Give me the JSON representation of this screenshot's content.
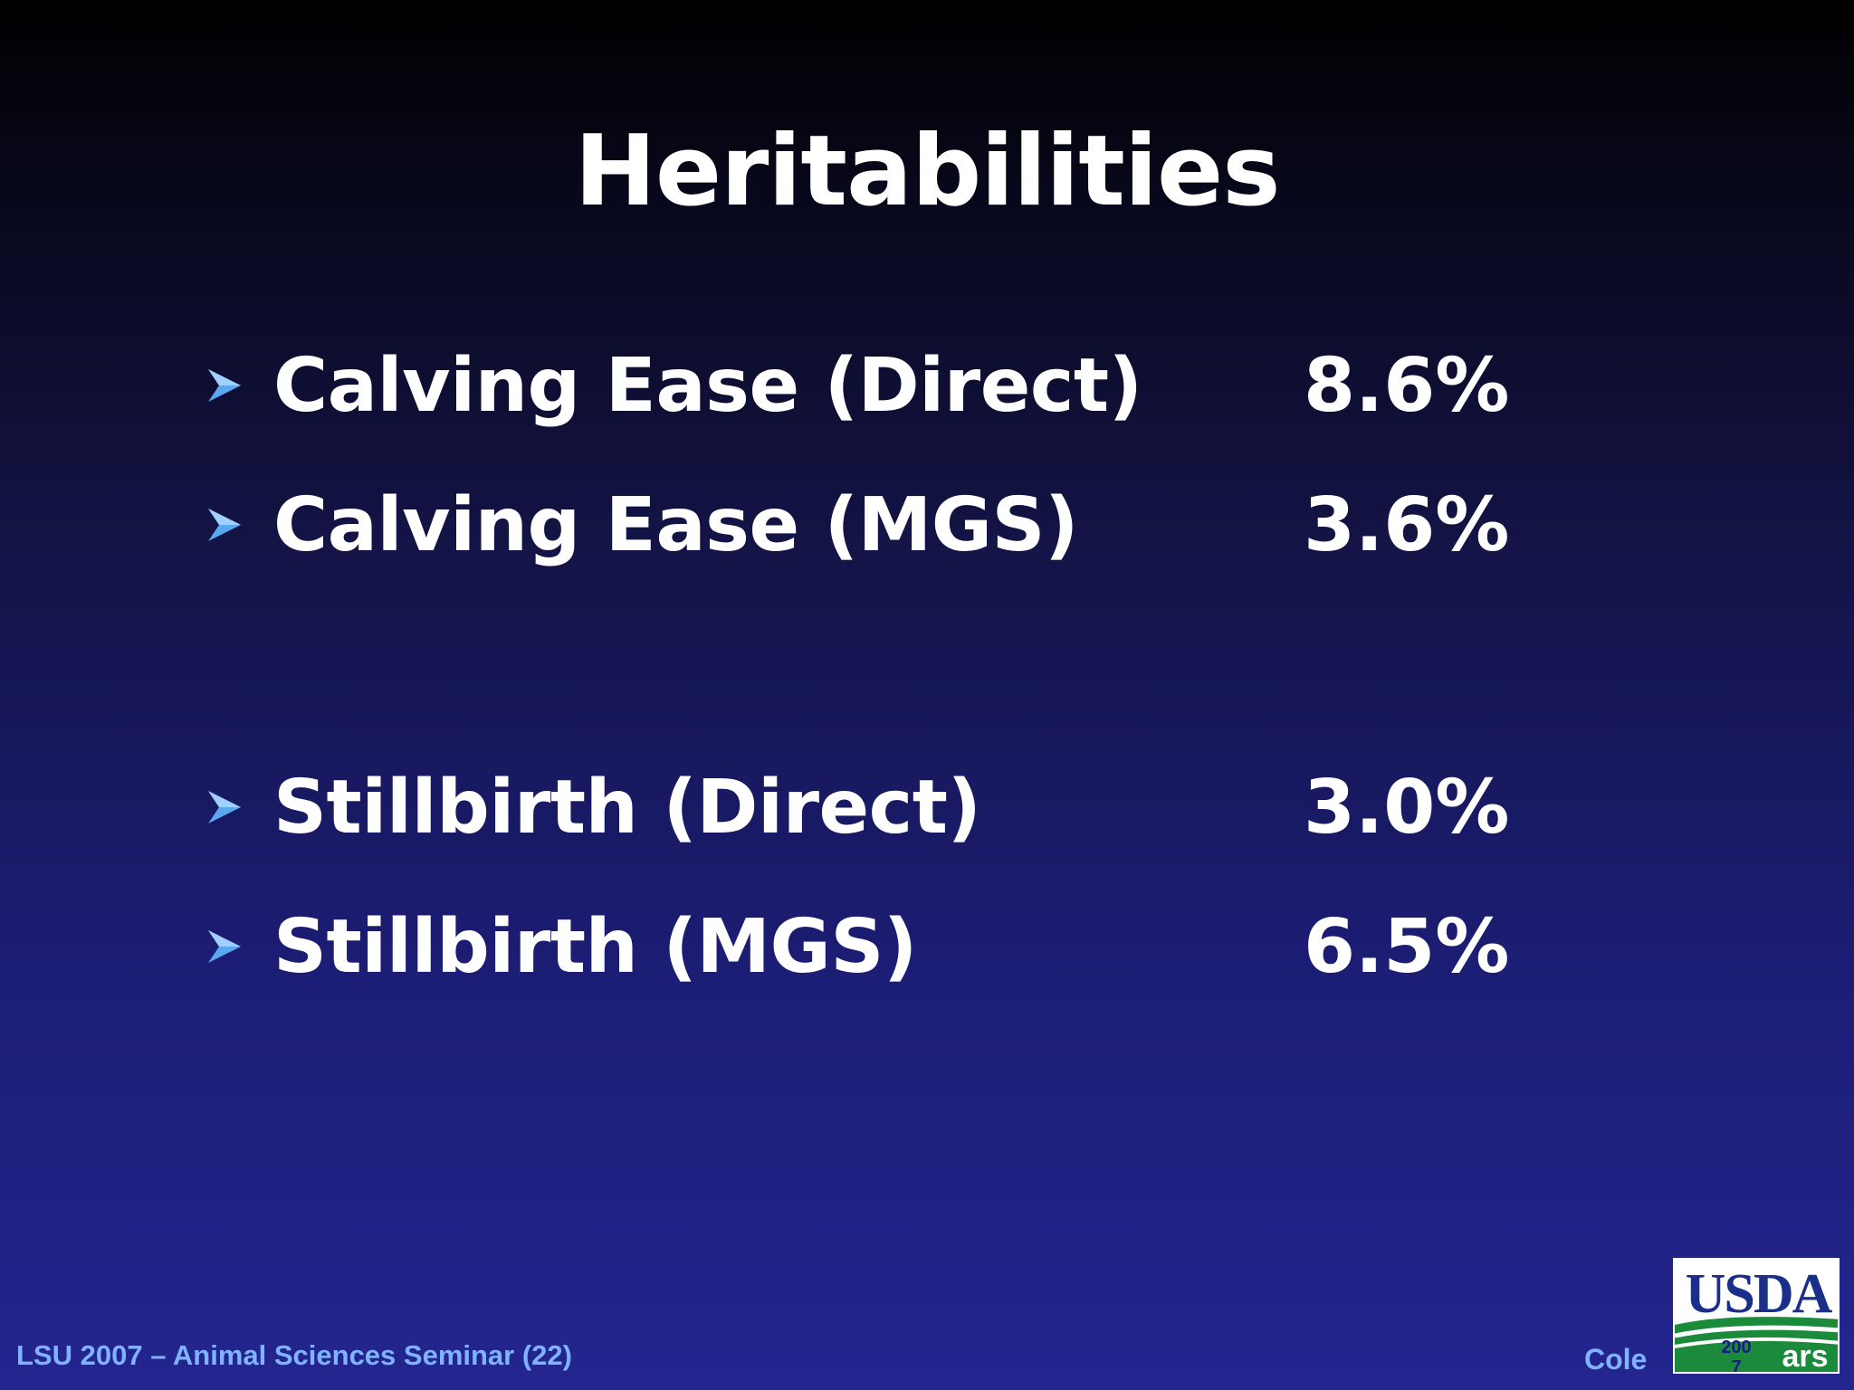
{
  "slide": {
    "title": "Heritabilities",
    "bullets": [
      {
        "label": "Calving Ease (Direct)",
        "value": "8.6%"
      },
      {
        "label": "Calving Ease (MGS)",
        "value": "3.6%"
      },
      {
        "label": "Stillbirth (Direct)",
        "value": "3.0%"
      },
      {
        "label": "Stillbirth (MGS)",
        "value": "6.5%"
      }
    ],
    "bullet_icon": "arrowhead-bullet-icon"
  },
  "footer": {
    "left_text": "LSU 2007 – Animal Sciences Seminar (22)",
    "right_text": "Cole"
  },
  "logo": {
    "org_text": "USDA",
    "agency_text": "ars",
    "year_text": "2007",
    "colors": {
      "navy": "#1a2f8a",
      "green": "#1b8a3a"
    }
  },
  "colors": {
    "text": "#ffffff",
    "footer_text": "#7fb3ff",
    "bullet": "#5aa8f0",
    "background_top": "#000000",
    "background_bottom": "#24258f"
  }
}
